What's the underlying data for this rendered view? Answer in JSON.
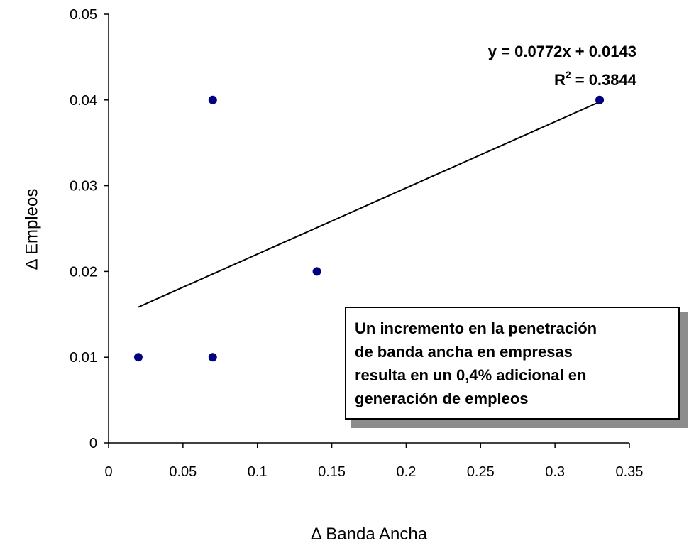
{
  "chart_data": {
    "type": "scatter",
    "xlabel": "Δ Banda Ancha",
    "ylabel": "Δ Empleos",
    "xlim": [
      0,
      0.35
    ],
    "ylim": [
      0,
      0.05
    ],
    "x_ticks": [
      "0",
      "0.05",
      "0.1",
      "0.15",
      "0.2",
      "0.25",
      "0.3",
      "0.35"
    ],
    "y_ticks": [
      "0",
      "0.01",
      "0.02",
      "0.03",
      "0.04",
      "0.05"
    ],
    "grid": false,
    "series": [
      {
        "points": [
          {
            "x": 0.02,
            "y": 0.01
          },
          {
            "x": 0.07,
            "y": 0.04
          },
          {
            "x": 0.07,
            "y": 0.01
          },
          {
            "x": 0.14,
            "y": 0.02
          },
          {
            "x": 0.33,
            "y": 0.04
          }
        ],
        "color": "#000080"
      }
    ],
    "trendline": {
      "type": "linear",
      "slope": 0.0772,
      "intercept": 0.0143,
      "x_range": [
        0.02,
        0.33
      ],
      "equation_label": "y = 0.0772x + 0.0143",
      "r2_label_prefix": "R",
      "r2_label_sup": "2",
      "r2_label_suffix": " = 0.3844"
    },
    "annotation": {
      "lines": [
        "Un incremento en la penetración",
        "de banda ancha en empresas",
        "resulta en un 0,4% adicional en",
        "generación de empleos"
      ]
    }
  }
}
